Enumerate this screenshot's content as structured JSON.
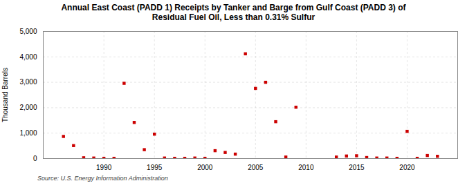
{
  "chart_data": {
    "type": "scatter",
    "title": "Annual East Coast (PADD 1) Receipts by Tanker and Barge from Gulf Coast (PADD 3) of\nResidual Fuel Oil, Less than 0.31% Sulfur",
    "ylabel": "Thousand Barrels",
    "source": "Source: U.S. Energy Information Administration",
    "color": "#cc0000",
    "marker": "square",
    "grid": true,
    "x": [
      1986,
      1987,
      1988,
      1989,
      1990,
      1991,
      1992,
      1993,
      1994,
      1995,
      1996,
      1997,
      1998,
      1999,
      2000,
      2001,
      2002,
      2003,
      2004,
      2005,
      2006,
      2007,
      2008,
      2009,
      2013,
      2014,
      2015,
      2016,
      2017,
      2018,
      2019,
      2020,
      2021,
      2022,
      2023
    ],
    "values": [
      870,
      510,
      30,
      20,
      10,
      10,
      2960,
      1420,
      350,
      960,
      20,
      10,
      10,
      20,
      10,
      310,
      240,
      175,
      4120,
      2760,
      3000,
      1450,
      60,
      2020,
      60,
      100,
      110,
      40,
      20,
      20,
      10,
      1070,
      10,
      120,
      90
    ],
    "xlim": [
      1984,
      2025
    ],
    "xticks": [
      1990,
      1995,
      2000,
      2005,
      2010,
      2015,
      2020
    ],
    "ylim": [
      0,
      5000
    ],
    "yticks": [
      0,
      {
        "value": 1000,
        "label": "1,000"
      },
      {
        "value": 2000,
        "label": "2,000"
      },
      {
        "value": 3000,
        "label": "3,000"
      },
      {
        "value": 4000,
        "label": "4,000"
      },
      {
        "value": 5000,
        "label": "5,000"
      }
    ]
  }
}
